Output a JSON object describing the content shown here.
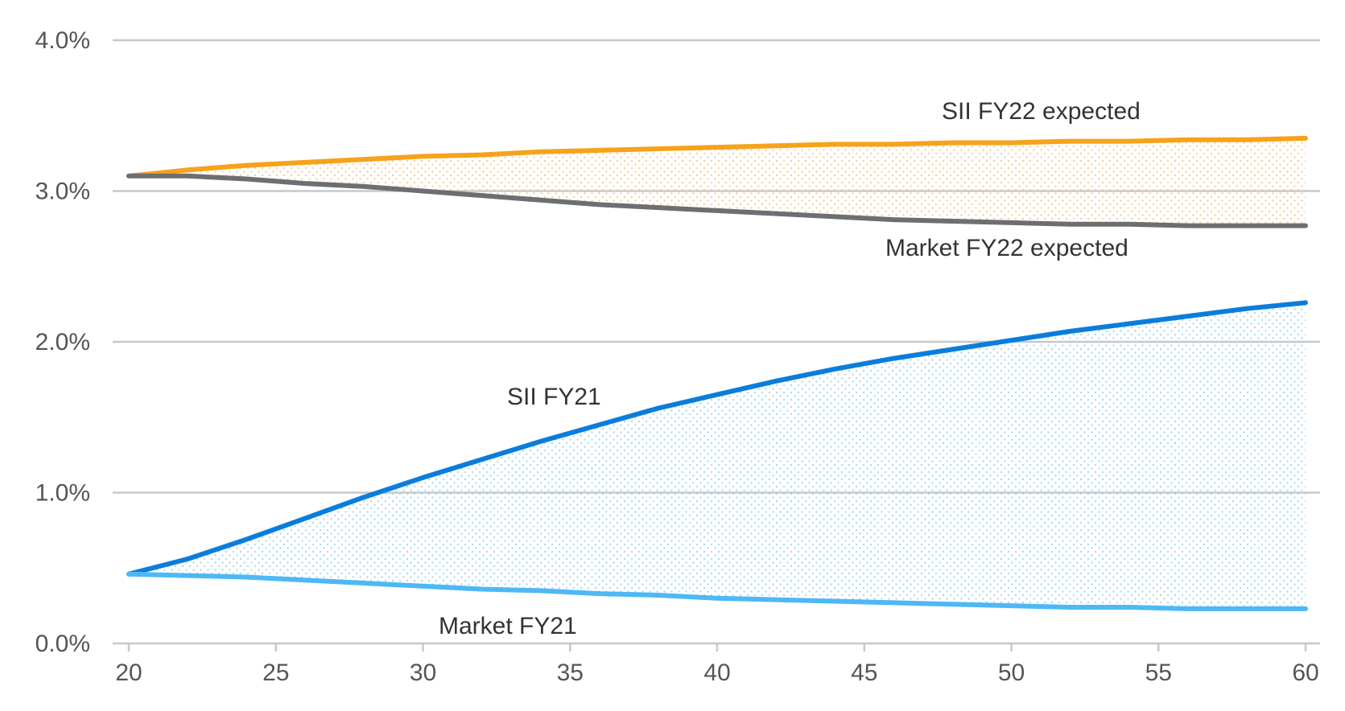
{
  "chart_data": {
    "type": "area",
    "title": "",
    "xlabel": "",
    "ylabel": "",
    "x": [
      20,
      22,
      24,
      26,
      28,
      30,
      32,
      34,
      36,
      38,
      40,
      42,
      44,
      46,
      48,
      50,
      52,
      54,
      56,
      58,
      60
    ],
    "xlim": [
      20,
      60
    ],
    "ylim": [
      0,
      4
    ],
    "x_ticks": [
      20,
      25,
      30,
      35,
      40,
      45,
      50,
      55,
      60
    ],
    "x_tick_labels": [
      "20",
      "25",
      "30",
      "35",
      "40",
      "45",
      "50",
      "55",
      "60"
    ],
    "y_ticks": [
      0,
      1,
      2,
      3,
      4
    ],
    "y_tick_labels": [
      "0.0%",
      "1.0%",
      "2.0%",
      "3.0%",
      "4.0%"
    ],
    "grid": "horizontal",
    "legend": "none (series labelled directly on chart)",
    "series": [
      {
        "name": "SII FY22 expected",
        "color": "#f7a21b",
        "values": [
          3.1,
          3.14,
          3.17,
          3.19,
          3.21,
          3.23,
          3.24,
          3.26,
          3.27,
          3.28,
          3.29,
          3.3,
          3.31,
          3.31,
          3.32,
          3.32,
          3.33,
          3.33,
          3.34,
          3.34,
          3.35
        ]
      },
      {
        "name": "Market FY22 expected",
        "color": "#6d6e71",
        "values": [
          3.1,
          3.1,
          3.08,
          3.05,
          3.03,
          3.0,
          2.97,
          2.94,
          2.91,
          2.89,
          2.87,
          2.85,
          2.83,
          2.81,
          2.8,
          2.79,
          2.78,
          2.78,
          2.77,
          2.77,
          2.77
        ]
      },
      {
        "name": "SII FY21",
        "color": "#0a7ddc",
        "values": [
          0.46,
          0.56,
          0.69,
          0.83,
          0.97,
          1.1,
          1.22,
          1.34,
          1.45,
          1.56,
          1.65,
          1.74,
          1.82,
          1.89,
          1.95,
          2.01,
          2.07,
          2.12,
          2.17,
          2.22,
          2.26
        ]
      },
      {
        "name": "Market FY21",
        "color": "#4db8f5",
        "values": [
          0.46,
          0.45,
          0.44,
          0.42,
          0.4,
          0.38,
          0.36,
          0.35,
          0.33,
          0.32,
          0.3,
          0.29,
          0.28,
          0.27,
          0.26,
          0.25,
          0.24,
          0.24,
          0.23,
          0.23,
          0.23
        ]
      }
    ],
    "shaded_bands": [
      {
        "upper": "SII FY22 expected",
        "lower": "Market FY22 expected",
        "color": "#f7a21b",
        "pattern": "dotted"
      },
      {
        "upper": "SII FY21",
        "lower": "Market FY21",
        "color": "#4db8f5",
        "pattern": "dotted"
      }
    ]
  }
}
